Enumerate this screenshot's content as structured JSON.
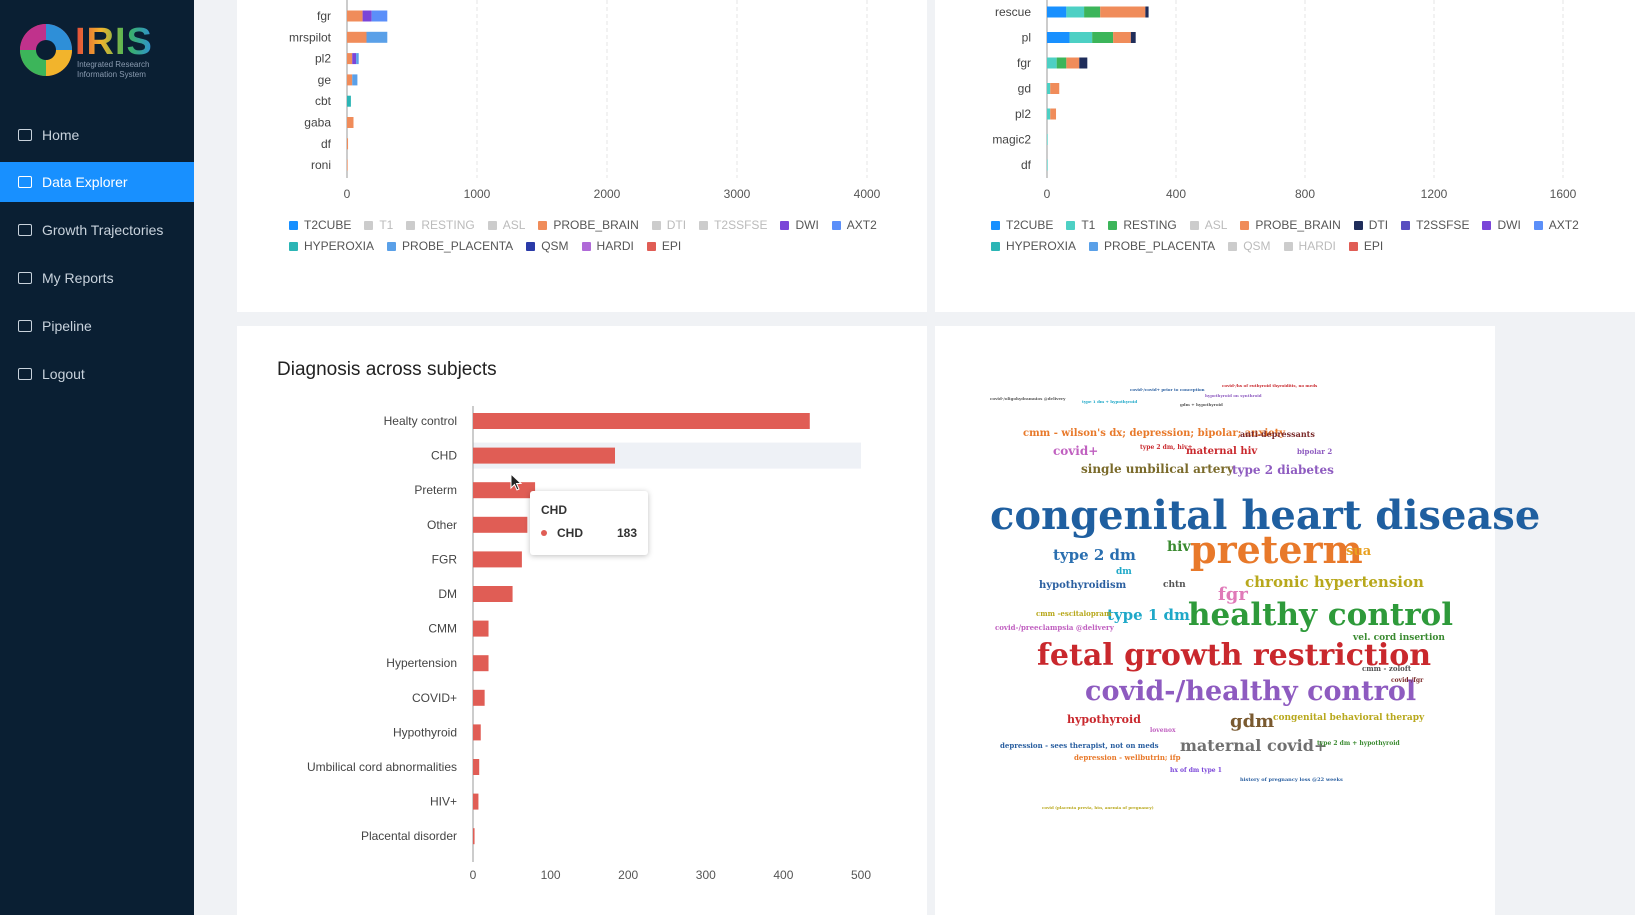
{
  "sidebar": {
    "logo_title": "IRIS",
    "logo_subtitle": "Integrated Research Information System",
    "items": [
      {
        "label": "Home",
        "icon": "home-icon",
        "active": false
      },
      {
        "label": "Data Explorer",
        "icon": "monitor-icon",
        "active": true
      },
      {
        "label": "Growth Trajectories",
        "icon": "table-icon",
        "active": false
      },
      {
        "label": "My Reports",
        "icon": "report-icon",
        "active": false
      },
      {
        "label": "Pipeline",
        "icon": "pipeline-icon",
        "active": false
      },
      {
        "label": "Logout",
        "icon": "logout-icon",
        "active": false
      }
    ]
  },
  "legend_left": [
    {
      "label": "T2CUBE",
      "color": "#1890ff",
      "on": true
    },
    {
      "label": "T1",
      "color": "#ccc",
      "on": false
    },
    {
      "label": "RESTING",
      "color": "#ccc",
      "on": false
    },
    {
      "label": "ASL",
      "color": "#ccc",
      "on": false
    },
    {
      "label": "PROBE_BRAIN",
      "color": "#f08c5a",
      "on": true
    },
    {
      "label": "DTI",
      "color": "#ccc",
      "on": false
    },
    {
      "label": "T2SSFSE",
      "color": "#ccc",
      "on": false
    },
    {
      "label": "DWI",
      "color": "#7a45d8",
      "on": true
    },
    {
      "label": "AXT2",
      "color": "#5b8ff9",
      "on": true
    },
    {
      "label": "HYPEROXIA",
      "color": "#2bb5b5",
      "on": true
    },
    {
      "label": "PROBE_PLACENTA",
      "color": "#5aa0e8",
      "on": true
    },
    {
      "label": "QSM",
      "color": "#2a3aa8",
      "on": true
    },
    {
      "label": "HARDI",
      "color": "#b06ad8",
      "on": true
    },
    {
      "label": "EPI",
      "color": "#e05d55",
      "on": true
    }
  ],
  "legend_right": [
    {
      "label": "T2CUBE",
      "color": "#1890ff",
      "on": true
    },
    {
      "label": "T1",
      "color": "#4dd0c4",
      "on": true
    },
    {
      "label": "RESTING",
      "color": "#3cb55a",
      "on": true
    },
    {
      "label": "ASL",
      "color": "#ccc",
      "on": false
    },
    {
      "label": "PROBE_BRAIN",
      "color": "#f08c5a",
      "on": true
    },
    {
      "label": "DTI",
      "color": "#1f2d5a",
      "on": true
    },
    {
      "label": "T2SSFSE",
      "color": "#5a4fc0",
      "on": true
    },
    {
      "label": "DWI",
      "color": "#7a45d8",
      "on": true
    },
    {
      "label": "AXT2",
      "color": "#5b8ff9",
      "on": true
    },
    {
      "label": "HYPEROXIA",
      "color": "#2bb5b5",
      "on": true
    },
    {
      "label": "PROBE_PLACENTA",
      "color": "#5aa0e8",
      "on": true
    },
    {
      "label": "QSM",
      "color": "#ccc",
      "on": false
    },
    {
      "label": "HARDI",
      "color": "#ccc",
      "on": false
    },
    {
      "label": "EPI",
      "color": "#e05d55",
      "on": true
    }
  ],
  "top_left_chart": {
    "categories": [
      "fgr",
      "mrspilot",
      "pl2",
      "ge",
      "cbt",
      "gaba",
      "df",
      "roni"
    ],
    "xticks": [
      "0",
      "1000",
      "2000",
      "3000",
      "4000"
    ],
    "xmax": 4000,
    "segments": [
      [
        [
          "#f08c5a",
          120
        ],
        [
          "#7a45d8",
          70
        ],
        [
          "#5b8ff9",
          120
        ]
      ],
      [
        [
          "#f08c5a",
          150
        ],
        [
          "#5aa0e8",
          160
        ]
      ],
      [
        [
          "#f08c5a",
          40
        ],
        [
          "#7a45d8",
          30
        ],
        [
          "#5aa0e8",
          20
        ]
      ],
      [
        [
          "#f08c5a",
          40
        ],
        [
          "#5aa0e8",
          40
        ]
      ],
      [
        [
          "#2bb5b5",
          30
        ]
      ],
      [
        [
          "#f08c5a",
          50
        ]
      ],
      [
        [
          "#f08c5a",
          8
        ]
      ],
      [
        [
          "#f08c5a",
          5
        ]
      ]
    ]
  },
  "top_right_chart": {
    "categories": [
      "rescue",
      "pl",
      "fgr",
      "gd",
      "pl2",
      "magic2",
      "df"
    ],
    "xticks": [
      "0",
      "400",
      "800",
      "1200",
      "1600"
    ],
    "xmax": 1600,
    "segments": [
      [
        [
          "#1890ff",
          60
        ],
        [
          "#4dd0c4",
          55
        ],
        [
          "#3cb55a",
          50
        ],
        [
          "#f08c5a",
          140
        ],
        [
          "#1f2d5a",
          10
        ]
      ],
      [
        [
          "#1890ff",
          70
        ],
        [
          "#4dd0c4",
          70
        ],
        [
          "#3cb55a",
          65
        ],
        [
          "#f08c5a",
          55
        ],
        [
          "#1f2d5a",
          15
        ]
      ],
      [
        [
          "#4dd0c4",
          30
        ],
        [
          "#3cb55a",
          30
        ],
        [
          "#f08c5a",
          40
        ],
        [
          "#1f2d5a",
          25
        ]
      ],
      [
        [
          "#4dd0c4",
          10
        ],
        [
          "#f08c5a",
          28
        ]
      ],
      [
        [
          "#4dd0c4",
          10
        ],
        [
          "#f08c5a",
          18
        ]
      ],
      [
        [
          "#4dd0c4",
          2
        ]
      ],
      [
        [
          "#4dd0c4",
          2
        ]
      ]
    ]
  },
  "diagnosis_chart": {
    "title": "Diagnosis across subjects",
    "categories": [
      "Healty control",
      "CHD",
      "Preterm",
      "Other",
      "FGR",
      "DM",
      "CMM",
      "Hypertension",
      "COVID+",
      "Hypothyroid",
      "Umbilical cord abnormalities",
      "HIV+",
      "Placental disorder"
    ],
    "values": [
      434,
      183,
      80,
      70,
      63,
      51,
      20,
      20,
      15,
      10,
      8,
      7,
      2
    ],
    "xticks": [
      "0",
      "100",
      "200",
      "300",
      "400",
      "500"
    ],
    "xmax": 500,
    "color": "#e05d55",
    "highlight_index": 1
  },
  "tooltip": {
    "title": "CHD",
    "series": "CHD",
    "value": "183"
  },
  "wordcloud": [
    {
      "t": "congenital heart disease",
      "c": "#1f5fa0",
      "s": 40,
      "x": 0,
      "y": 110
    },
    {
      "t": "preterm",
      "c": "#e8792a",
      "s": 38,
      "x": 200,
      "y": 145
    },
    {
      "t": "healthy control",
      "c": "#2e9a3a",
      "s": 31,
      "x": 198,
      "y": 214
    },
    {
      "t": "fetal growth restriction",
      "c": "#c9282d",
      "s": 30,
      "x": 47,
      "y": 255
    },
    {
      "t": "covid-/healthy control",
      "c": "#8e5bc0",
      "s": 27,
      "x": 95,
      "y": 292
    },
    {
      "t": "type 2 dm",
      "c": "#2a6fb0",
      "s": 15,
      "x": 63,
      "y": 162
    },
    {
      "t": "type 1 dm",
      "c": "#1ea8c8",
      "s": 15,
      "x": 117,
      "y": 222
    },
    {
      "t": "chronic hypertension",
      "c": "#b8a81c",
      "s": 15,
      "x": 255,
      "y": 189
    },
    {
      "t": "gdm",
      "c": "#7a5a30",
      "s": 18,
      "x": 240,
      "y": 327
    },
    {
      "t": "maternal covid+",
      "c": "#707070",
      "s": 16,
      "x": 190,
      "y": 352
    },
    {
      "t": "fgr",
      "c": "#e07ab8",
      "s": 18,
      "x": 228,
      "y": 200
    },
    {
      "t": "hiv",
      "c": "#3a8a30",
      "s": 14,
      "x": 177,
      "y": 154
    },
    {
      "t": "sua",
      "c": "#e8a020",
      "s": 13,
      "x": 356,
      "y": 159
    },
    {
      "t": "single umbilical artery",
      "c": "#7a6a2a",
      "s": 12,
      "x": 91,
      "y": 77
    },
    {
      "t": "type 2 diabetes",
      "c": "#8e5bc0",
      "s": 12,
      "x": 242,
      "y": 78
    },
    {
      "t": "cmm - wilson's dx; depression; bipolar; anxiety",
      "c": "#e8792a",
      "s": 10,
      "x": 33,
      "y": 43
    },
    {
      "t": "covid+",
      "c": "#c060c0",
      "s": 12,
      "x": 63,
      "y": 59
    },
    {
      "t": "maternal hiv",
      "c": "#c9282d",
      "s": 10,
      "x": 196,
      "y": 61
    },
    {
      "t": "anti-depressants",
      "c": "#7a2a2a",
      "s": 8,
      "x": 250,
      "y": 44
    },
    {
      "t": "hypothyroidism",
      "c": "#2a5fa0",
      "s": 10,
      "x": 49,
      "y": 195
    },
    {
      "t": "hypothyroid",
      "c": "#c9282d",
      "s": 11,
      "x": 77,
      "y": 328
    },
    {
      "t": "congenital behavioral therapy",
      "c": "#b8a81c",
      "s": 9,
      "x": 283,
      "y": 328
    },
    {
      "t": "vel. cord insertion",
      "c": "#3a8a30",
      "s": 9,
      "x": 363,
      "y": 248
    },
    {
      "t": "chtn",
      "c": "#555",
      "s": 9,
      "x": 173,
      "y": 195
    },
    {
      "t": "dm",
      "c": "#1ea8c8",
      "s": 9,
      "x": 126,
      "y": 182
    },
    {
      "t": "depression - sees therapist, not on meds",
      "c": "#2a5fa0",
      "s": 7,
      "x": 10,
      "y": 356
    },
    {
      "t": "depression - wellbutrin; ifp",
      "c": "#e8792a",
      "s": 7,
      "x": 84,
      "y": 368
    },
    {
      "t": "type 2 dm + hypothyroid",
      "c": "#3a8a30",
      "s": 6,
      "x": 327,
      "y": 355
    },
    {
      "t": "covid-/preeclampsia @delivery",
      "c": "#c060c0",
      "s": 7,
      "x": 5,
      "y": 238
    },
    {
      "t": "cmm - zoloft",
      "c": "#555",
      "s": 7,
      "x": 372,
      "y": 279
    },
    {
      "t": "covid-/fgr",
      "c": "#7a2a2a",
      "s": 6,
      "x": 401,
      "y": 292
    },
    {
      "t": "cmm -escitalopram",
      "c": "#b8a81c",
      "s": 7,
      "x": 46,
      "y": 224
    },
    {
      "t": "hx of dm type 1",
      "c": "#7a45d8",
      "s": 6,
      "x": 180,
      "y": 382
    },
    {
      "t": "history of pregnancy loss @22 weeks",
      "c": "#2a5fa0",
      "s": 5,
      "x": 250,
      "y": 392
    },
    {
      "t": "bipolar 2",
      "c": "#8e5bc0",
      "s": 7,
      "x": 307,
      "y": 62
    },
    {
      "t": "type 2 dm, hiv+",
      "c": "#c9282d",
      "s": 6,
      "x": 150,
      "y": 59
    },
    {
      "t": "lovenox",
      "c": "#c060c0",
      "s": 6,
      "x": 160,
      "y": 342
    },
    {
      "t": "covid (placenta previa, htn, anemia of pregnancy)",
      "c": "#b8a81c",
      "s": 4,
      "x": 52,
      "y": 420
    },
    {
      "t": "covid-/covid+ prior to conception",
      "c": "#2a5fa0",
      "s": 4,
      "x": 140,
      "y": 2
    },
    {
      "t": "covid-/hx of euthyroid thyroiditis, no meds",
      "c": "#c9282d",
      "s": 4,
      "x": 232,
      "y": -2
    },
    {
      "t": "hypothyroid on synthroid",
      "c": "#8e5bc0",
      "s": 4,
      "x": 215,
      "y": 8
    },
    {
      "t": "type 1 dm + hypothyroid",
      "c": "#1ea8c8",
      "s": 4,
      "x": 92,
      "y": 14
    },
    {
      "t": "gdm + hypothyroid",
      "c": "#555",
      "s": 4,
      "x": 190,
      "y": 17
    },
    {
      "t": "covid-/oligohydramnios @delivery",
      "c": "#555",
      "s": 4,
      "x": 0,
      "y": 11
    }
  ]
}
